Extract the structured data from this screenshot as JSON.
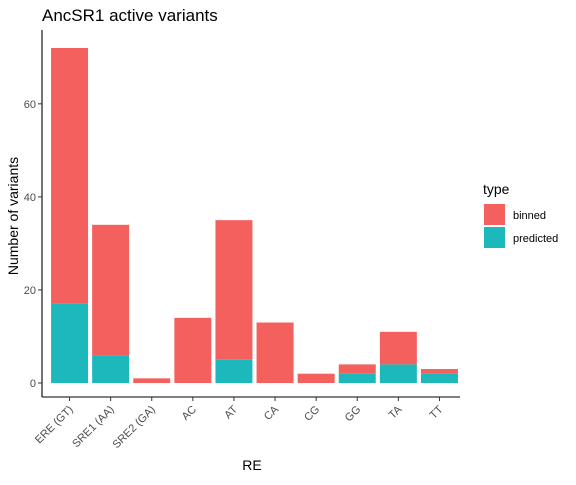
{
  "chart_data": {
    "type": "bar",
    "stacked": true,
    "title": "AncSR1 active variants",
    "xlabel": "RE",
    "ylabel": "Number of variants",
    "categories": [
      "ERE (GT)",
      "SRE1 (AA)",
      "SRE2 (GA)",
      "AC",
      "AT",
      "CA",
      "CG",
      "GG",
      "TA",
      "TT"
    ],
    "series": [
      {
        "name": "predicted",
        "color": "#1CB8BC",
        "values": [
          17,
          6,
          0,
          0,
          5,
          0,
          0,
          2,
          4,
          2
        ]
      },
      {
        "name": "binned",
        "color": "#F4605E",
        "values": [
          55,
          28,
          1,
          14,
          30,
          13,
          2,
          2,
          7,
          1
        ]
      }
    ],
    "ylim": [
      -3,
      75
    ],
    "yticks": [
      0,
      20,
      40,
      60
    ],
    "legend": {
      "title": "type",
      "placement": "right",
      "items": [
        "binned",
        "predicted"
      ]
    },
    "grid": false
  }
}
